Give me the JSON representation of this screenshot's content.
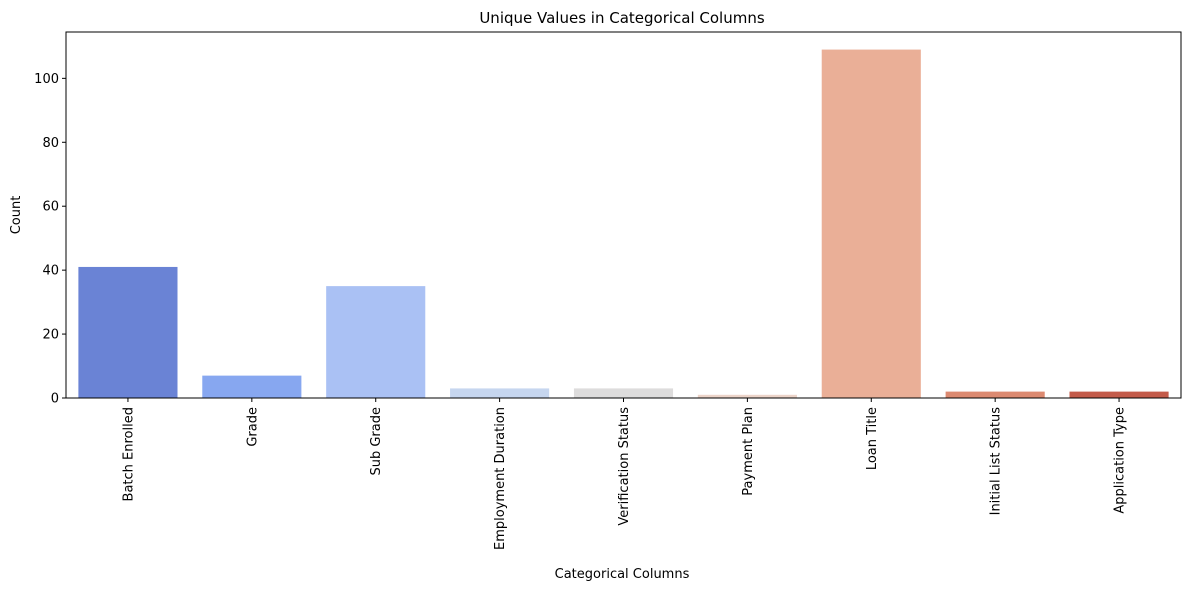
{
  "chart_data": {
    "type": "bar",
    "title": "Unique Values in Categorical Columns",
    "xlabel": "Categorical Columns",
    "ylabel": "Count",
    "categories": [
      "Batch Enrolled",
      "Grade",
      "Sub Grade",
      "Employment Duration",
      "Verification Status",
      "Payment Plan",
      "Loan Title",
      "Initial List Status",
      "Application Type"
    ],
    "values": [
      41,
      7,
      35,
      3,
      3,
      1,
      109,
      2,
      2
    ],
    "colors": [
      "#6a83d5",
      "#87a7f0",
      "#aac1f4",
      "#c6d6ef",
      "#dddcdc",
      "#ecd4c9",
      "#eaaf97",
      "#dc8a71",
      "#c35b4a"
    ],
    "ylim": [
      0,
      114.5
    ],
    "yticks": [
      0,
      20,
      40,
      60,
      80,
      100
    ],
    "grid": false,
    "legend": "none"
  }
}
